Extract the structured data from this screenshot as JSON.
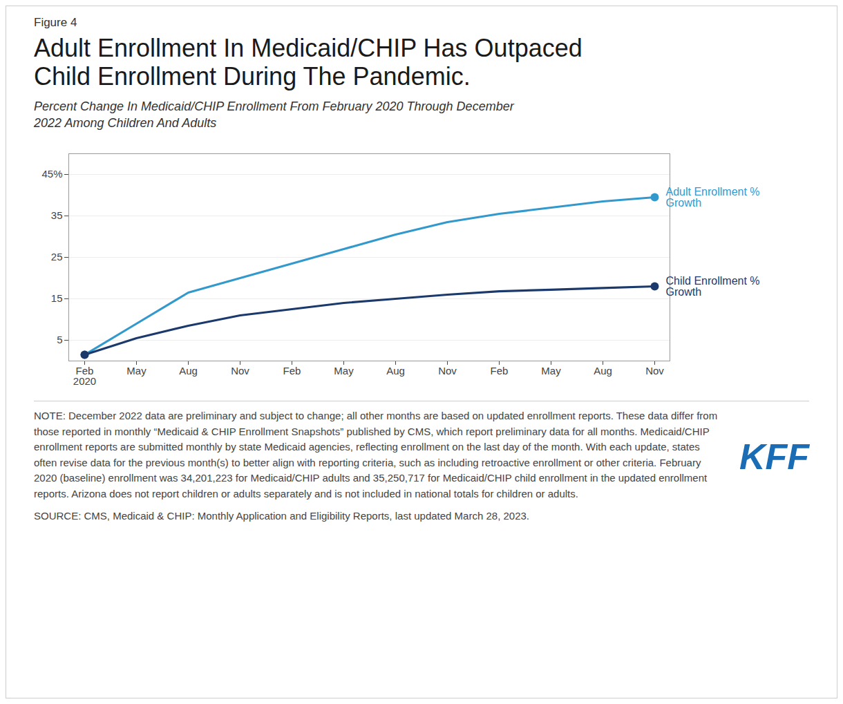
{
  "chart_data": {
    "type": "line",
    "figure_label": "Figure 4",
    "title": "Adult Enrollment In Medicaid/CHIP Has Outpaced\nChild Enrollment During The Pandemic.",
    "subtitle": "Percent Change In Medicaid/CHIP Enrollment From February 2020 Through December\n2022 Among Children And Adults",
    "categories": [
      "Feb\n2020",
      "May",
      "Aug",
      "Nov",
      "Feb",
      "May",
      "Aug",
      "Nov",
      "Feb",
      "May",
      "Aug",
      "Nov"
    ],
    "series": [
      {
        "name": "Adult Enrollment %\nGrowth",
        "color": "#3399CC",
        "values": [
          1.5,
          9.0,
          16.5,
          20.0,
          23.5,
          27.0,
          30.5,
          33.5,
          35.5,
          37.0,
          38.5,
          39.5
        ]
      },
      {
        "name": "Child Enrollment %\nGrowth",
        "color": "#1B3A6B",
        "values": [
          1.5,
          5.5,
          8.5,
          11.0,
          12.5,
          14.0,
          15.0,
          16.0,
          16.8,
          17.2,
          17.6,
          18.0
        ]
      }
    ],
    "ylim": [
      0,
      50
    ],
    "yticks": [
      5,
      15,
      25,
      35,
      {
        "value": 45,
        "label": "45%"
      }
    ],
    "grid": true,
    "note": "NOTE: December 2022 data are preliminary and subject to change; all other months are based on updated enrollment reports. These data differ from those reported in monthly “Medicaid & CHIP Enrollment Snapshots” published by CMS, which report preliminary data for all months. Medicaid/CHIP enrollment reports are submitted monthly by state Medicaid agencies, reflecting enrollment on the last day of the month. With each update, states often revise data for the previous month(s) to better align with reporting criteria, such as including retroactive enrollment or other criteria. February 2020 (baseline) enrollment was 34,201,223 for Medicaid/CHIP adults and 35,250,717 for Medicaid/CHIP child enrollment in the updated enrollment reports. Arizona does not report children or adults separately and is not included in national totals for children or adults.",
    "source": "SOURCE: CMS, Medicaid & CHIP: Monthly Application and Eligibility Reports, last updated March 28, 2023.",
    "logo": "KFF"
  }
}
